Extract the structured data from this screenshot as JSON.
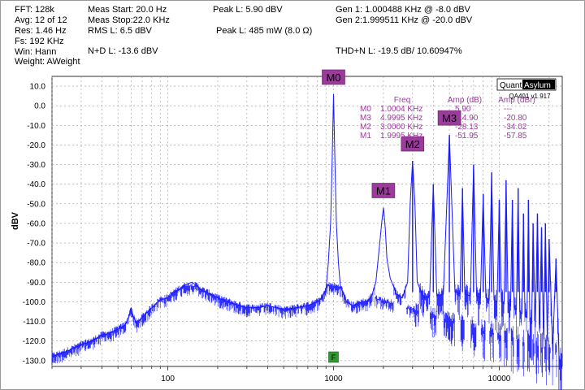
{
  "header": {
    "fft": "FFT:  128k",
    "avg": "Avg:  12 of 12",
    "res": "Res:  1.46 Hz",
    "fs": "Fs:  192 KHz",
    "win": "Win:  Hann",
    "weight": "Weight:  AWeight",
    "meas_start": "Meas Start: 20.0 Hz",
    "meas_stop": "Meas Stop:22.0 KHz",
    "rms_l": "RMS L: 6.5 dBV",
    "peak_l_dbv": "Peak L: 5.90 dBV",
    "peak_l_mw": "Peak L: 485 mW (8.0 Ω)",
    "gen1": "Gen 1: 1.000488 KHz @ -8.0  dBV",
    "gen2": "Gen 2:1.999511 KHz @ -20.0  dBV",
    "nd_l": "N+D L: -13.6 dBV",
    "thdn_l": "THD+N L: -19.5 dB/ 10.60947%"
  },
  "logo": {
    "part1": "Quant",
    "part2": "Asylum",
    "version": "QA401 v1.917"
  },
  "colors": {
    "trace": "#1a1aff",
    "marker": "#9b3b9b",
    "grid": "#9a9a9a",
    "badge": "#2d9a2d"
  },
  "chart_data": {
    "type": "line",
    "xlabel": "",
    "ylabel": "dBV",
    "x_scale": "log",
    "xlim": [
      20,
      24000
    ],
    "ylim": [
      -133,
      15
    ],
    "y_ticks": [
      10,
      0,
      -10,
      -20,
      -30,
      -40,
      -50,
      -60,
      -70,
      -80,
      -90,
      -100,
      -110,
      -120,
      -130
    ],
    "y_tick_labels": [
      "10.0",
      "0.0",
      "-10.0",
      "-20.0",
      "-30.0",
      "-40.0",
      "-50.0",
      "-60.0",
      "-70.0",
      "-80.0",
      "-90.0",
      "-100.0",
      "-110.0",
      "-120.0",
      "-130.0"
    ],
    "x_ticks": [
      100,
      1000,
      10000
    ],
    "x_tick_labels": [
      "100",
      "1000",
      "10000"
    ],
    "grid": true,
    "fundamental_hz": 1000,
    "series": [
      {
        "points": [
          [
            20,
            -128
          ],
          [
            25,
            -125
          ],
          [
            30,
            -122
          ],
          [
            35,
            -120
          ],
          [
            40,
            -117
          ],
          [
            45,
            -116
          ],
          [
            50,
            -114
          ],
          [
            55,
            -112
          ],
          [
            58,
            -108
          ],
          [
            60,
            -103
          ],
          [
            62,
            -108
          ],
          [
            65,
            -111
          ],
          [
            70,
            -108
          ],
          [
            80,
            -103
          ],
          [
            90,
            -99
          ],
          [
            100,
            -98
          ],
          [
            110,
            -95
          ],
          [
            120,
            -93
          ],
          [
            130,
            -91
          ],
          [
            140,
            -90
          ],
          [
            150,
            -92
          ],
          [
            160,
            -94
          ],
          [
            180,
            -96
          ],
          [
            200,
            -98
          ],
          [
            250,
            -101
          ],
          [
            300,
            -103
          ],
          [
            350,
            -103
          ],
          [
            400,
            -102
          ],
          [
            450,
            -103
          ],
          [
            500,
            -104
          ],
          [
            600,
            -103
          ],
          [
            700,
            -102
          ],
          [
            800,
            -100
          ],
          [
            850,
            -98
          ],
          [
            900,
            -94
          ],
          [
            930,
            -80
          ],
          [
            960,
            -60
          ],
          [
            980,
            -30
          ],
          [
            1000,
            5.9
          ],
          [
            1020,
            -30
          ],
          [
            1040,
            -60
          ],
          [
            1070,
            -80
          ],
          [
            1100,
            -92
          ],
          [
            1200,
            -100
          ],
          [
            1300,
            -102
          ],
          [
            1400,
            -101
          ],
          [
            1500,
            -100
          ],
          [
            1600,
            -100
          ],
          [
            1700,
            -97
          ],
          [
            1800,
            -90
          ],
          [
            1900,
            -70
          ],
          [
            1950,
            -60
          ],
          [
            2000,
            -52
          ],
          [
            2050,
            -62
          ],
          [
            2100,
            -78
          ],
          [
            2200,
            -88
          ],
          [
            2400,
            -96
          ],
          [
            2600,
            -98
          ],
          [
            2800,
            -90
          ],
          [
            2900,
            -50
          ],
          [
            3000,
            -28.1
          ],
          [
            3100,
            -50
          ],
          [
            3200,
            -90
          ],
          [
            3500,
            -98
          ],
          [
            3800,
            -97
          ],
          [
            4000,
            -40
          ],
          [
            4200,
            -97
          ],
          [
            4600,
            -96
          ],
          [
            5000,
            -14.9
          ],
          [
            5400,
            -95
          ],
          [
            5800,
            -96
          ],
          [
            6000,
            -42
          ],
          [
            6200,
            -96
          ],
          [
            6700,
            -97
          ],
          [
            7000,
            -30
          ],
          [
            7300,
            -97
          ],
          [
            7700,
            -98
          ],
          [
            8000,
            -45
          ],
          [
            8300,
            -98
          ],
          [
            8700,
            -99
          ],
          [
            9000,
            -34
          ],
          [
            9300,
            -99
          ],
          [
            9700,
            -100
          ],
          [
            10000,
            -48
          ],
          [
            10300,
            -100
          ],
          [
            10700,
            -101
          ],
          [
            11000,
            -38
          ],
          [
            11300,
            -101
          ],
          [
            11700,
            -102
          ],
          [
            12000,
            -48
          ],
          [
            12300,
            -103
          ],
          [
            12700,
            -104
          ],
          [
            13000,
            -42
          ],
          [
            13300,
            -105
          ],
          [
            13700,
            -106
          ],
          [
            14000,
            -55
          ],
          [
            14300,
            -107
          ],
          [
            14700,
            -108
          ],
          [
            15000,
            -48
          ],
          [
            15300,
            -110
          ],
          [
            15700,
            -111
          ],
          [
            16000,
            -60
          ],
          [
            16500,
            -113
          ],
          [
            17000,
            -55
          ],
          [
            17500,
            -115
          ],
          [
            18000,
            -62
          ],
          [
            18500,
            -117
          ],
          [
            19000,
            -60
          ],
          [
            19500,
            -120
          ],
          [
            20000,
            -68
          ],
          [
            21000,
            -125
          ],
          [
            22000,
            -78
          ],
          [
            23000,
            -130
          ],
          [
            24000,
            -134
          ]
        ]
      }
    ],
    "harmonic_peaks": [
      {
        "f": 3000,
        "db": -28.1
      },
      {
        "f": 4000,
        "db": -40
      },
      {
        "f": 5000,
        "db": -14.9
      },
      {
        "f": 6000,
        "db": -42
      },
      {
        "f": 7000,
        "db": -30
      },
      {
        "f": 8000,
        "db": -45
      },
      {
        "f": 9000,
        "db": -34
      },
      {
        "f": 10000,
        "db": -48
      },
      {
        "f": 11000,
        "db": -38
      },
      {
        "f": 12000,
        "db": -48
      },
      {
        "f": 13000,
        "db": -42
      },
      {
        "f": 14000,
        "db": -55
      },
      {
        "f": 15000,
        "db": -48
      },
      {
        "f": 16000,
        "db": -60
      },
      {
        "f": 17000,
        "db": -55
      },
      {
        "f": 18000,
        "db": -62
      },
      {
        "f": 19000,
        "db": -60
      },
      {
        "f": 20000,
        "db": -68
      },
      {
        "f": 22000,
        "db": -78
      }
    ],
    "markers": [
      {
        "label": "M0",
        "f": 1000,
        "db": 5.9
      },
      {
        "label": "M1",
        "f": 2000,
        "db": -51.95
      },
      {
        "label": "M2",
        "f": 3000,
        "db": -28.13
      },
      {
        "label": "M3",
        "f": 5000,
        "db": -14.9
      }
    ],
    "marker_table": {
      "headers": [
        "Freq",
        "Amp (dB)",
        "Amp (dBr)"
      ],
      "rows": [
        [
          "M0",
          "1.0004 KHz",
          "5.90",
          "---"
        ],
        [
          "M3",
          "4.9995 KHz",
          "-14.90",
          "-20.80"
        ],
        [
          "M2",
          "3.0000 KHz",
          "-28.13",
          "-34.02"
        ],
        [
          "M1",
          "1.9995 KHz",
          "-51.95",
          "-57.85"
        ]
      ]
    },
    "freq_badge": "F"
  }
}
